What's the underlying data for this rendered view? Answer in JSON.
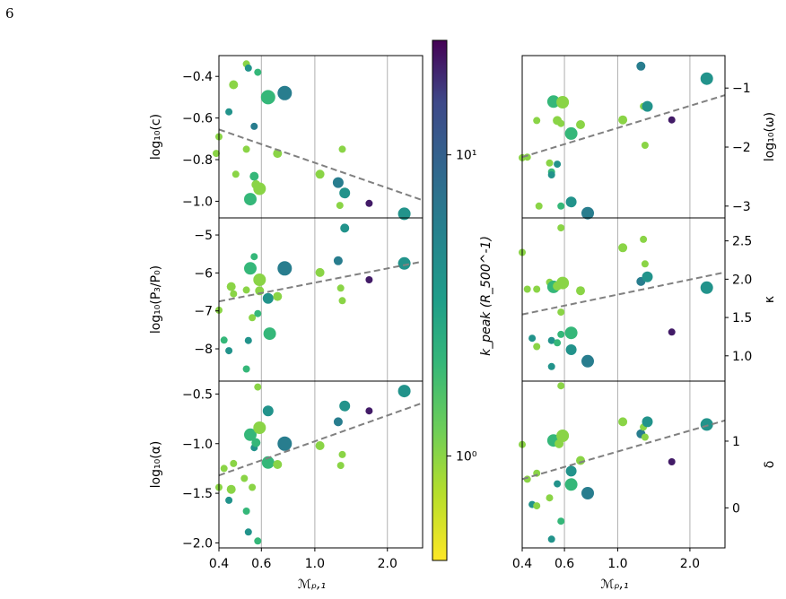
{
  "page_number": "6",
  "colorbar": {
    "label": "k_peak (R_500^-1)",
    "tick_labels": [
      "10¹",
      "10⁰"
    ],
    "tick_values": [
      10,
      1
    ],
    "range": [
      0.45,
      24
    ],
    "scale": "log",
    "colormap": "viridis_r"
  },
  "chart_data": [
    {
      "type": "scatter",
      "id": "left-c",
      "ylabel": "log₁₀(c)",
      "ylabel_side": "left",
      "xscale": "log",
      "xlim": [
        0.4,
        2.8
      ],
      "ylim": [
        -1.08,
        -0.3
      ],
      "yticks": [
        -0.4,
        -0.6,
        -0.8,
        -1.0
      ],
      "ytick_labels": [
        "−0.4",
        "−0.6",
        "−0.8",
        "−1.0"
      ],
      "fit_line": [
        [
          0.4,
          -0.655
        ],
        [
          2.8,
          -0.995
        ]
      ],
      "points": [
        {
          "x": 0.4,
          "y": -0.69,
          "k": 1.0,
          "s": 4
        },
        {
          "x": 0.39,
          "y": -0.77,
          "k": 1.0,
          "s": 4
        },
        {
          "x": 0.44,
          "y": -0.57,
          "k": 4,
          "s": 4
        },
        {
          "x": 0.46,
          "y": -0.44,
          "k": 1.0,
          "s": 5
        },
        {
          "x": 0.47,
          "y": -0.87,
          "k": 1.0,
          "s": 4
        },
        {
          "x": 0.52,
          "y": -0.34,
          "k": 1.0,
          "s": 4
        },
        {
          "x": 0.52,
          "y": -0.75,
          "k": 1.0,
          "s": 4
        },
        {
          "x": 0.53,
          "y": -0.36,
          "k": 4,
          "s": 4
        },
        {
          "x": 0.54,
          "y": -0.99,
          "k": 2,
          "s": 7
        },
        {
          "x": 0.56,
          "y": -0.88,
          "k": 2,
          "s": 5
        },
        {
          "x": 0.56,
          "y": -0.64,
          "k": 6,
          "s": 4
        },
        {
          "x": 0.57,
          "y": -0.92,
          "k": 1.0,
          "s": 5
        },
        {
          "x": 0.58,
          "y": -0.38,
          "k": 2,
          "s": 4
        },
        {
          "x": 0.59,
          "y": -0.94,
          "k": 1.0,
          "s": 7
        },
        {
          "x": 0.64,
          "y": -0.5,
          "k": 2,
          "s": 8
        },
        {
          "x": 0.7,
          "y": -0.77,
          "k": 1.0,
          "s": 5
        },
        {
          "x": 0.75,
          "y": -0.48,
          "k": 6,
          "s": 8
        },
        {
          "x": 1.05,
          "y": -0.87,
          "k": 1.0,
          "s": 5
        },
        {
          "x": 1.25,
          "y": -0.91,
          "k": 6,
          "s": 6
        },
        {
          "x": 1.27,
          "y": -1.02,
          "k": 1.0,
          "s": 4
        },
        {
          "x": 1.3,
          "y": -0.75,
          "k": 1.0,
          "s": 4
        },
        {
          "x": 1.33,
          "y": -0.96,
          "k": 4,
          "s": 6
        },
        {
          "x": 1.68,
          "y": -1.01,
          "k": 20,
          "s": 4
        },
        {
          "x": 2.35,
          "y": -1.06,
          "k": 4,
          "s": 7
        }
      ]
    },
    {
      "type": "scatter",
      "id": "left-p3",
      "ylabel": "log₁₀(P₃/P₀)",
      "ylabel_side": "left",
      "xscale": "log",
      "xlim": [
        0.4,
        2.8
      ],
      "ylim": [
        -8.85,
        -4.55
      ],
      "yticks": [
        -5,
        -6,
        -7,
        -8
      ],
      "ytick_labels": [
        "−5",
        "−6",
        "−7",
        "−8"
      ],
      "fit_line": [
        [
          0.4,
          -6.75
        ],
        [
          2.8,
          -5.7
        ]
      ],
      "points": [
        {
          "x": 0.4,
          "y": -6.98,
          "k": 1.0,
          "s": 4
        },
        {
          "x": 0.42,
          "y": -7.77,
          "k": 2,
          "s": 4
        },
        {
          "x": 0.44,
          "y": -8.05,
          "k": 4,
          "s": 4
        },
        {
          "x": 0.45,
          "y": -6.36,
          "k": 1.0,
          "s": 5
        },
        {
          "x": 0.46,
          "y": -6.55,
          "k": 1.0,
          "s": 4
        },
        {
          "x": 0.52,
          "y": -8.53,
          "k": 2,
          "s": 4
        },
        {
          "x": 0.52,
          "y": -6.45,
          "k": 1.0,
          "s": 4
        },
        {
          "x": 0.53,
          "y": -7.78,
          "k": 4,
          "s": 4
        },
        {
          "x": 0.54,
          "y": -5.88,
          "k": 2,
          "s": 7
        },
        {
          "x": 0.55,
          "y": -7.18,
          "k": 1.0,
          "s": 4
        },
        {
          "x": 0.56,
          "y": -5.57,
          "k": 2,
          "s": 4
        },
        {
          "x": 0.58,
          "y": -7.07,
          "k": 2,
          "s": 4
        },
        {
          "x": 0.59,
          "y": -6.18,
          "k": 1.0,
          "s": 7
        },
        {
          "x": 0.59,
          "y": -6.47,
          "k": 1.0,
          "s": 5
        },
        {
          "x": 0.64,
          "y": -6.67,
          "k": 4,
          "s": 6
        },
        {
          "x": 0.65,
          "y": -7.6,
          "k": 2,
          "s": 7
        },
        {
          "x": 0.7,
          "y": -6.62,
          "k": 1.0,
          "s": 5
        },
        {
          "x": 0.75,
          "y": -5.88,
          "k": 6,
          "s": 8
        },
        {
          "x": 1.05,
          "y": -5.99,
          "k": 1.0,
          "s": 5
        },
        {
          "x": 1.25,
          "y": -5.68,
          "k": 6,
          "s": 5
        },
        {
          "x": 1.28,
          "y": -6.4,
          "k": 1.0,
          "s": 4
        },
        {
          "x": 1.3,
          "y": -6.73,
          "k": 1.0,
          "s": 4
        },
        {
          "x": 1.33,
          "y": -4.82,
          "k": 4,
          "s": 5
        },
        {
          "x": 1.68,
          "y": -6.18,
          "k": 20,
          "s": 4
        },
        {
          "x": 2.35,
          "y": -5.75,
          "k": 4,
          "s": 7
        }
      ]
    },
    {
      "type": "scatter",
      "id": "left-alpha",
      "ylabel": "log₁₀(α)",
      "ylabel_side": "left",
      "xscale": "log",
      "xlim": [
        0.4,
        2.8
      ],
      "ylim": [
        -2.05,
        -0.37
      ],
      "yticks": [
        -0.5,
        -1.0,
        -1.5,
        -2.0
      ],
      "ytick_labels": [
        "−0.5",
        "−1.0",
        "−1.5",
        "−2.0"
      ],
      "fit_line": [
        [
          0.4,
          -1.32
        ],
        [
          2.8,
          -0.59
        ]
      ],
      "points": [
        {
          "x": 0.4,
          "y": -1.44,
          "k": 1.0,
          "s": 4
        },
        {
          "x": 0.42,
          "y": -1.25,
          "k": 1.0,
          "s": 4
        },
        {
          "x": 0.44,
          "y": -1.57,
          "k": 4,
          "s": 4
        },
        {
          "x": 0.45,
          "y": -1.46,
          "k": 1.0,
          "s": 5
        },
        {
          "x": 0.46,
          "y": -1.2,
          "k": 1.0,
          "s": 4
        },
        {
          "x": 0.51,
          "y": -1.35,
          "k": 1.0,
          "s": 4
        },
        {
          "x": 0.52,
          "y": -1.68,
          "k": 2,
          "s": 4
        },
        {
          "x": 0.53,
          "y": -1.89,
          "k": 4,
          "s": 4
        },
        {
          "x": 0.54,
          "y": -0.91,
          "k": 2,
          "s": 7
        },
        {
          "x": 0.55,
          "y": -1.44,
          "k": 1.0,
          "s": 4
        },
        {
          "x": 0.56,
          "y": -1.04,
          "k": 4,
          "s": 4
        },
        {
          "x": 0.57,
          "y": -0.99,
          "k": 2,
          "s": 5
        },
        {
          "x": 0.58,
          "y": -0.43,
          "k": 1.0,
          "s": 4
        },
        {
          "x": 0.58,
          "y": -1.98,
          "k": 2,
          "s": 4
        },
        {
          "x": 0.59,
          "y": -0.84,
          "k": 1.0,
          "s": 7
        },
        {
          "x": 0.64,
          "y": -0.67,
          "k": 4,
          "s": 6
        },
        {
          "x": 0.64,
          "y": -1.19,
          "k": 2,
          "s": 7
        },
        {
          "x": 0.7,
          "y": -1.21,
          "k": 1.0,
          "s": 5
        },
        {
          "x": 0.75,
          "y": -1.0,
          "k": 6,
          "s": 8
        },
        {
          "x": 1.05,
          "y": -1.02,
          "k": 1.0,
          "s": 5
        },
        {
          "x": 1.25,
          "y": -0.78,
          "k": 6,
          "s": 5
        },
        {
          "x": 1.28,
          "y": -1.22,
          "k": 1.0,
          "s": 4
        },
        {
          "x": 1.3,
          "y": -1.11,
          "k": 1.0,
          "s": 4
        },
        {
          "x": 1.33,
          "y": -0.62,
          "k": 4,
          "s": 6
        },
        {
          "x": 1.68,
          "y": -0.67,
          "k": 20,
          "s": 4
        },
        {
          "x": 2.35,
          "y": -0.47,
          "k": 4,
          "s": 7
        }
      ],
      "xlabel": "ℳₚ,₁",
      "xticks": [
        0.4,
        0.6,
        1.0,
        2.0
      ],
      "xtick_labels": [
        "0.4",
        "0.6",
        "1.0",
        "2.0"
      ]
    },
    {
      "type": "scatter",
      "id": "right-omega",
      "ylabel": "log₁₀(ω)",
      "ylabel_side": "right",
      "xscale": "log",
      "xlim": [
        0.4,
        2.8
      ],
      "ylim": [
        -3.2,
        -0.45
      ],
      "yticks": [
        -1,
        -2,
        -3
      ],
      "ytick_labels": [
        "−1",
        "−2",
        "−3"
      ],
      "fit_line": [
        [
          0.4,
          -2.17
        ],
        [
          2.8,
          -1.12
        ]
      ],
      "points": [
        {
          "x": 0.4,
          "y": -2.18,
          "k": 1.0,
          "s": 4
        },
        {
          "x": 0.42,
          "y": -2.17,
          "k": 1.0,
          "s": 4
        },
        {
          "x": 0.46,
          "y": -1.55,
          "k": 1.0,
          "s": 4
        },
        {
          "x": 0.47,
          "y": -3.0,
          "k": 1.0,
          "s": 4
        },
        {
          "x": 0.52,
          "y": -2.27,
          "k": 1.0,
          "s": 4
        },
        {
          "x": 0.53,
          "y": -2.42,
          "k": 2,
          "s": 4
        },
        {
          "x": 0.53,
          "y": -2.47,
          "k": 4,
          "s": 4
        },
        {
          "x": 0.54,
          "y": -1.23,
          "k": 2,
          "s": 7
        },
        {
          "x": 0.56,
          "y": -1.55,
          "k": 1.0,
          "s": 5
        },
        {
          "x": 0.56,
          "y": -2.29,
          "k": 4,
          "s": 4
        },
        {
          "x": 0.58,
          "y": -1.6,
          "k": 1.0,
          "s": 4
        },
        {
          "x": 0.58,
          "y": -3.0,
          "k": 2,
          "s": 4
        },
        {
          "x": 0.59,
          "y": -1.24,
          "k": 1.0,
          "s": 7
        },
        {
          "x": 0.64,
          "y": -1.77,
          "k": 2,
          "s": 7
        },
        {
          "x": 0.64,
          "y": -2.93,
          "k": 4,
          "s": 6
        },
        {
          "x": 0.7,
          "y": -1.62,
          "k": 1.0,
          "s": 5
        },
        {
          "x": 0.75,
          "y": -3.12,
          "k": 6,
          "s": 7
        },
        {
          "x": 1.05,
          "y": -1.54,
          "k": 1.0,
          "s": 5
        },
        {
          "x": 1.25,
          "y": -0.63,
          "k": 6,
          "s": 5
        },
        {
          "x": 1.28,
          "y": -1.31,
          "k": 1.0,
          "s": 4
        },
        {
          "x": 1.3,
          "y": -1.97,
          "k": 1.0,
          "s": 4
        },
        {
          "x": 1.33,
          "y": -1.31,
          "k": 4,
          "s": 6
        },
        {
          "x": 1.68,
          "y": -1.54,
          "k": 20,
          "s": 4
        },
        {
          "x": 2.35,
          "y": -0.84,
          "k": 4,
          "s": 7
        }
      ]
    },
    {
      "type": "scatter",
      "id": "right-kappa",
      "ylabel": "κ",
      "ylabel_side": "right",
      "xscale": "log",
      "xlim": [
        0.4,
        2.8
      ],
      "ylim": [
        0.67,
        2.8
      ],
      "yticks": [
        1.0,
        1.5,
        2.0,
        2.5
      ],
      "ytick_labels": [
        "1.0",
        "1.5",
        "2.0",
        "2.5"
      ],
      "fit_line": [
        [
          0.4,
          1.54
        ],
        [
          2.8,
          2.09
        ]
      ],
      "points": [
        {
          "x": 0.4,
          "y": 2.35,
          "k": 1.0,
          "s": 4
        },
        {
          "x": 0.42,
          "y": 1.87,
          "k": 1.0,
          "s": 4
        },
        {
          "x": 0.44,
          "y": 1.23,
          "k": 4,
          "s": 4
        },
        {
          "x": 0.46,
          "y": 1.12,
          "k": 1.0,
          "s": 4
        },
        {
          "x": 0.46,
          "y": 1.87,
          "k": 1.0,
          "s": 4
        },
        {
          "x": 0.52,
          "y": 1.96,
          "k": 1.0,
          "s": 4
        },
        {
          "x": 0.53,
          "y": 1.2,
          "k": 4,
          "s": 4
        },
        {
          "x": 0.53,
          "y": 0.86,
          "k": 4,
          "s": 4
        },
        {
          "x": 0.54,
          "y": 1.9,
          "k": 2,
          "s": 7
        },
        {
          "x": 0.56,
          "y": 1.17,
          "k": 2,
          "s": 4
        },
        {
          "x": 0.56,
          "y": 1.91,
          "k": 1.0,
          "s": 5
        },
        {
          "x": 0.58,
          "y": 1.57,
          "k": 1.0,
          "s": 4
        },
        {
          "x": 0.58,
          "y": 1.28,
          "k": 2,
          "s": 4
        },
        {
          "x": 0.58,
          "y": 2.67,
          "k": 1.0,
          "s": 4
        },
        {
          "x": 0.59,
          "y": 1.95,
          "k": 1.0,
          "s": 7
        },
        {
          "x": 0.64,
          "y": 1.3,
          "k": 2,
          "s": 7
        },
        {
          "x": 0.64,
          "y": 1.08,
          "k": 4,
          "s": 6
        },
        {
          "x": 0.7,
          "y": 1.85,
          "k": 1.0,
          "s": 5
        },
        {
          "x": 0.75,
          "y": 0.93,
          "k": 6,
          "s": 7
        },
        {
          "x": 1.05,
          "y": 2.41,
          "k": 1.0,
          "s": 5
        },
        {
          "x": 1.25,
          "y": 1.97,
          "k": 6,
          "s": 5
        },
        {
          "x": 1.28,
          "y": 2.52,
          "k": 1.0,
          "s": 4
        },
        {
          "x": 1.3,
          "y": 2.2,
          "k": 1.0,
          "s": 4
        },
        {
          "x": 1.33,
          "y": 2.03,
          "k": 4,
          "s": 6
        },
        {
          "x": 1.68,
          "y": 1.31,
          "k": 20,
          "s": 4
        },
        {
          "x": 2.35,
          "y": 1.89,
          "k": 4,
          "s": 7
        }
      ]
    },
    {
      "type": "scatter",
      "id": "right-delta",
      "ylabel": "δ",
      "ylabel_side": "right",
      "xscale": "log",
      "xlim": [
        0.4,
        2.8
      ],
      "ylim": [
        -0.6,
        1.9
      ],
      "yticks": [
        0,
        1
      ],
      "ytick_labels": [
        "0",
        "1"
      ],
      "fit_line": [
        [
          0.4,
          0.43
        ],
        [
          2.8,
          1.31
        ]
      ],
      "points": [
        {
          "x": 0.4,
          "y": 0.95,
          "k": 1.0,
          "s": 4
        },
        {
          "x": 0.42,
          "y": 0.43,
          "k": 1.0,
          "s": 4
        },
        {
          "x": 0.44,
          "y": 0.05,
          "k": 4,
          "s": 4
        },
        {
          "x": 0.46,
          "y": 0.52,
          "k": 1.0,
          "s": 4
        },
        {
          "x": 0.46,
          "y": 0.03,
          "k": 1.0,
          "s": 4
        },
        {
          "x": 0.52,
          "y": 0.15,
          "k": 1.0,
          "s": 4
        },
        {
          "x": 0.53,
          "y": -0.47,
          "k": 4,
          "s": 4
        },
        {
          "x": 0.54,
          "y": 1.01,
          "k": 2,
          "s": 7
        },
        {
          "x": 0.56,
          "y": 0.36,
          "k": 4,
          "s": 4
        },
        {
          "x": 0.57,
          "y": 0.96,
          "k": 1.0,
          "s": 5
        },
        {
          "x": 0.58,
          "y": 1.83,
          "k": 1.0,
          "s": 4
        },
        {
          "x": 0.58,
          "y": -0.2,
          "k": 2,
          "s": 4
        },
        {
          "x": 0.59,
          "y": 1.08,
          "k": 1.0,
          "s": 7
        },
        {
          "x": 0.64,
          "y": 0.55,
          "k": 4,
          "s": 6
        },
        {
          "x": 0.64,
          "y": 0.35,
          "k": 2,
          "s": 7
        },
        {
          "x": 0.7,
          "y": 0.71,
          "k": 1.0,
          "s": 5
        },
        {
          "x": 0.75,
          "y": 0.22,
          "k": 6,
          "s": 7
        },
        {
          "x": 1.05,
          "y": 1.29,
          "k": 1.0,
          "s": 5
        },
        {
          "x": 1.25,
          "y": 1.11,
          "k": 6,
          "s": 5
        },
        {
          "x": 1.28,
          "y": 1.21,
          "k": 1.0,
          "s": 4
        },
        {
          "x": 1.3,
          "y": 1.06,
          "k": 1.0,
          "s": 4
        },
        {
          "x": 1.33,
          "y": 1.29,
          "k": 4,
          "s": 6
        },
        {
          "x": 1.68,
          "y": 0.69,
          "k": 20,
          "s": 4
        },
        {
          "x": 2.35,
          "y": 1.25,
          "k": 4,
          "s": 7
        }
      ],
      "xlabel": "ℳₚ,₁",
      "xticks": [
        0.4,
        0.6,
        1.0,
        2.0
      ],
      "xtick_labels": [
        "0.4",
        "0.6",
        "1.0",
        "2.0"
      ]
    }
  ],
  "style": {
    "grid_color": "#b0b0b0",
    "fit_line_color": "#808080"
  }
}
